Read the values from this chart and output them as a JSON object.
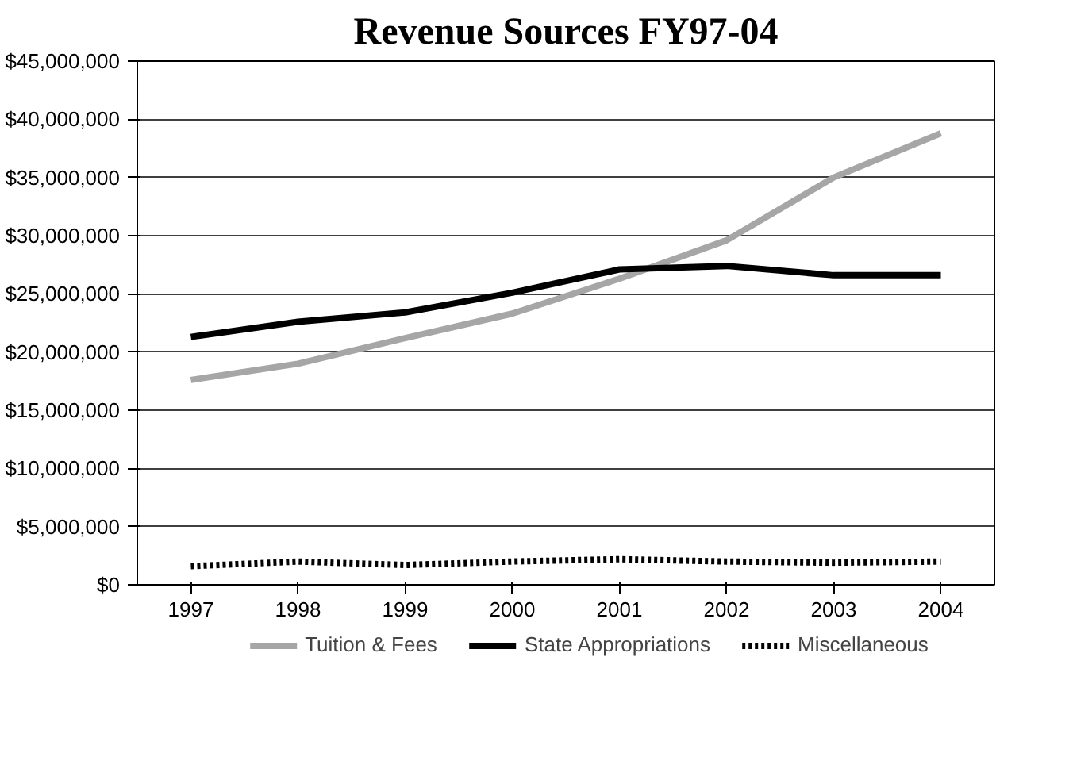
{
  "chart_data": {
    "type": "line",
    "title": "Revenue Sources FY97-04",
    "categories": [
      "1997",
      "1998",
      "1999",
      "2000",
      "2001",
      "2002",
      "2003",
      "2004"
    ],
    "series": [
      {
        "name": "Tuition & Fees",
        "color": "#a6a6a6",
        "line_style": "solid",
        "values": [
          17600000,
          19000000,
          21200000,
          23300000,
          26300000,
          29600000,
          35000000,
          38800000
        ]
      },
      {
        "name": "State Appropriations",
        "color": "#000000",
        "line_style": "solid",
        "values": [
          21300000,
          22600000,
          23400000,
          25100000,
          27100000,
          27400000,
          26600000,
          26600000
        ]
      },
      {
        "name": "Miscellaneous",
        "color": "#000000",
        "line_style": "dotted",
        "values": [
          1600000,
          2000000,
          1700000,
          2000000,
          2200000,
          2000000,
          1900000,
          2000000
        ]
      }
    ],
    "ylim": [
      0,
      45000000
    ],
    "yticks": [
      {
        "value": 0,
        "label": "$0"
      },
      {
        "value": 5000000,
        "label": "$5,000,000"
      },
      {
        "value": 10000000,
        "label": "$10,000,000"
      },
      {
        "value": 15000000,
        "label": "$15,000,000"
      },
      {
        "value": 20000000,
        "label": "$20,000,000"
      },
      {
        "value": 25000000,
        "label": "$25,000,000"
      },
      {
        "value": 30000000,
        "label": "$30,000,000"
      },
      {
        "value": 35000000,
        "label": "$35,000,000"
      },
      {
        "value": 40000000,
        "label": "$40,000,000"
      },
      {
        "value": 45000000,
        "label": "$45,000,000"
      }
    ],
    "grid": "y",
    "legend": "bottom",
    "marker": "none"
  }
}
